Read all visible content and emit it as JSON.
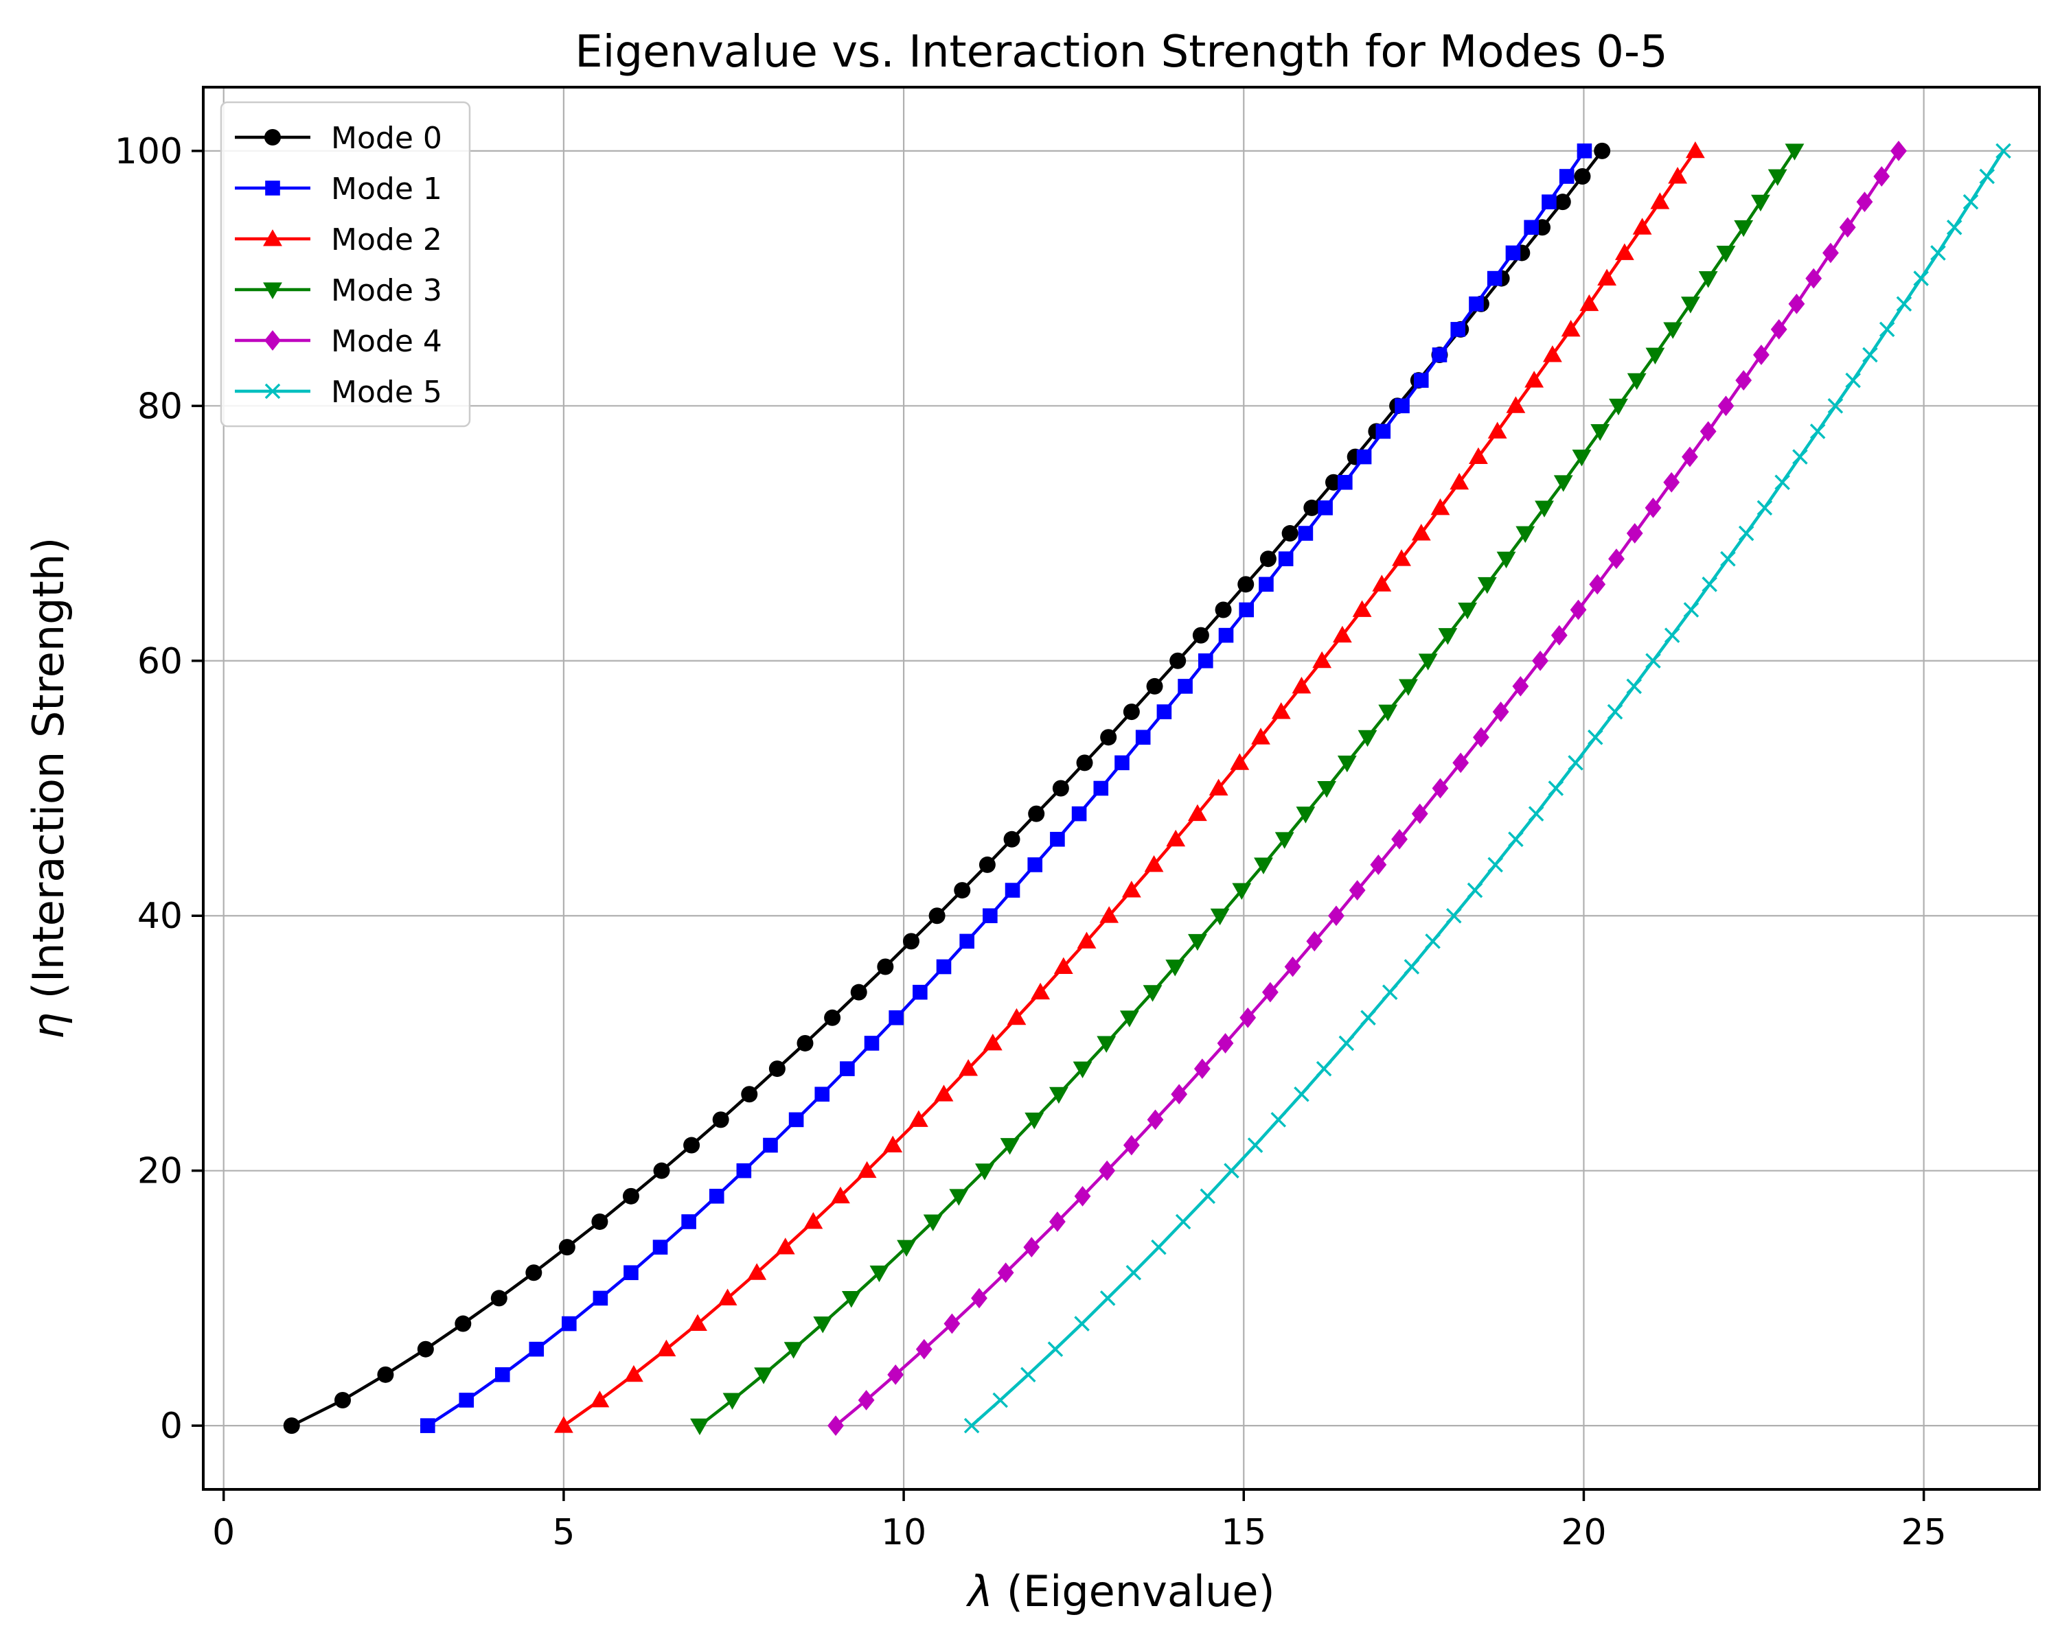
{
  "chart_data": {
    "type": "line",
    "title": "Eigenvalue vs. Interaction Strength for Modes 0-5",
    "xlabel_symbol": "λ",
    "xlabel": " (Eigenvalue)",
    "ylabel_symbol": "η",
    "ylabel": " (Interaction Strength)",
    "xlim": [
      -0.3,
      26.7
    ],
    "ylim": [
      -5,
      105
    ],
    "xticks": [
      0,
      5,
      10,
      15,
      20,
      25
    ],
    "xtick_labels": [
      "0",
      "5",
      "10",
      "15",
      "20",
      "25"
    ],
    "yticks": [
      0,
      20,
      40,
      60,
      80,
      100
    ],
    "ytick_labels": [
      "0",
      "20",
      "40",
      "60",
      "80",
      "100"
    ],
    "grid": true,
    "legend_position": "top-left",
    "eta": [
      0,
      2,
      4,
      6,
      8,
      10,
      12,
      14,
      16,
      18,
      20,
      22,
      24,
      26,
      28,
      30,
      32,
      34,
      36,
      38,
      40,
      42,
      44,
      46,
      48,
      50,
      52,
      54,
      56,
      58,
      60,
      62,
      64,
      66,
      68,
      70,
      72,
      74,
      76,
      78,
      80,
      82,
      84,
      86,
      88,
      90,
      92,
      94,
      96,
      98,
      100
    ],
    "series": [
      {
        "name": "Mode 0",
        "color": "#000000",
        "marker": "circle",
        "lambda": [
          1.0,
          1.75,
          2.38,
          2.97,
          3.52,
          4.05,
          4.56,
          5.05,
          5.53,
          5.99,
          6.44,
          6.88,
          7.31,
          7.73,
          8.14,
          8.55,
          8.95,
          9.34,
          9.73,
          10.11,
          10.49,
          10.86,
          11.23,
          11.59,
          11.95,
          12.31,
          12.66,
          13.01,
          13.35,
          13.69,
          14.03,
          14.37,
          14.7,
          15.03,
          15.36,
          15.68,
          16.0,
          16.32,
          16.64,
          16.95,
          17.26,
          17.57,
          17.88,
          18.19,
          18.49,
          18.79,
          19.09,
          19.39,
          19.69,
          19.98,
          20.27
        ],
        "lambda_scale_note": ""
      },
      {
        "name": "Mode 1",
        "color": "#0000ff",
        "marker": "square",
        "lambda": [
          3.0,
          3.57,
          4.1,
          4.6,
          5.08,
          5.54,
          5.99,
          6.42,
          6.84,
          7.25,
          7.65,
          8.04,
          8.42,
          8.8,
          9.17,
          9.53,
          9.89,
          10.24,
          10.59,
          10.93,
          11.27,
          11.6,
          11.93,
          12.26,
          12.58,
          12.9,
          13.21,
          13.52,
          13.83,
          14.14,
          14.44,
          14.74,
          15.04,
          15.33,
          15.62,
          15.91,
          16.2,
          16.49,
          16.77,
          17.05,
          17.33,
          17.61,
          17.88,
          18.15,
          18.42,
          18.69,
          18.96,
          19.23,
          19.49,
          19.75,
          20.01
        ]
      },
      {
        "name": "Mode 2",
        "color": "#ff0000",
        "marker": "triangle-up",
        "lambda": [
          5.0,
          5.53,
          6.03,
          6.51,
          6.97,
          7.41,
          7.84,
          8.26,
          8.67,
          9.07,
          9.46,
          9.84,
          10.22,
          10.59,
          10.95,
          11.31,
          11.66,
          12.01,
          12.35,
          12.69,
          13.02,
          13.35,
          13.68,
          14.0,
          14.32,
          14.63,
          14.94,
          15.25,
          15.55,
          15.85,
          16.15,
          16.45,
          16.74,
          17.03,
          17.32,
          17.61,
          17.89,
          18.17,
          18.45,
          18.73,
          19.0,
          19.27,
          19.54,
          19.81,
          20.08,
          20.34,
          20.6,
          20.86,
          21.12,
          21.38,
          21.64
        ]
      },
      {
        "name": "Mode 3",
        "color": "#007f00",
        "marker": "triangle-down",
        "lambda": [
          7.0,
          7.48,
          7.94,
          8.38,
          8.81,
          9.23,
          9.64,
          10.04,
          10.43,
          10.81,
          11.19,
          11.56,
          11.92,
          12.28,
          12.63,
          12.98,
          13.32,
          13.66,
          13.99,
          14.32,
          14.65,
          14.97,
          15.29,
          15.6,
          15.91,
          16.22,
          16.52,
          16.82,
          17.12,
          17.42,
          17.71,
          18.0,
          18.29,
          18.58,
          18.86,
          19.14,
          19.42,
          19.7,
          19.97,
          20.24,
          20.51,
          20.78,
          21.05,
          21.31,
          21.57,
          21.83,
          22.09,
          22.35,
          22.6,
          22.85,
          23.1
        ]
      },
      {
        "name": "Mode 4",
        "color": "#bf00bf",
        "marker": "diamond",
        "lambda": [
          9.0,
          9.45,
          9.88,
          10.3,
          10.71,
          11.11,
          11.5,
          11.88,
          12.26,
          12.63,
          12.99,
          13.35,
          13.7,
          14.05,
          14.39,
          14.73,
          15.06,
          15.39,
          15.72,
          16.04,
          16.36,
          16.67,
          16.98,
          17.29,
          17.59,
          17.89,
          18.19,
          18.49,
          18.78,
          19.07,
          19.36,
          19.64,
          19.92,
          20.2,
          20.48,
          20.75,
          21.02,
          21.29,
          21.56,
          21.83,
          22.09,
          22.35,
          22.61,
          22.87,
          23.13,
          23.38,
          23.63,
          23.88,
          24.13,
          24.38,
          24.63
        ]
      },
      {
        "name": "Mode 5",
        "color": "#00bfbf",
        "marker": "x",
        "lambda": [
          11.0,
          11.42,
          11.83,
          12.23,
          12.62,
          13.0,
          13.38,
          13.75,
          14.11,
          14.47,
          14.82,
          15.17,
          15.51,
          15.85,
          16.18,
          16.51,
          16.83,
          17.15,
          17.47,
          17.78,
          18.09,
          18.4,
          18.7,
          19.0,
          19.3,
          19.59,
          19.88,
          20.17,
          20.46,
          20.74,
          21.02,
          21.3,
          21.58,
          21.85,
          22.12,
          22.39,
          22.66,
          22.92,
          23.18,
          23.44,
          23.7,
          23.96,
          24.21,
          24.46,
          24.71,
          24.96,
          25.21,
          25.45,
          25.69,
          25.93,
          26.17
        ]
      }
    ]
  }
}
